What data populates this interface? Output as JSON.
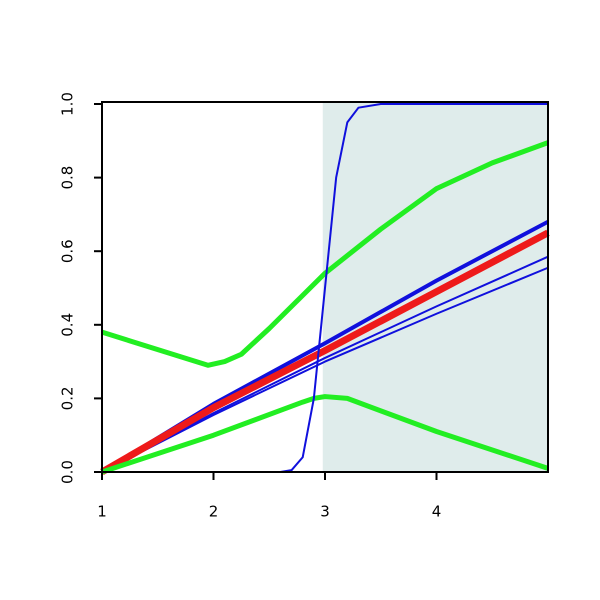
{
  "chart_data": {
    "type": "line",
    "xlim": [
      1,
      5
    ],
    "ylim": [
      0,
      1
    ],
    "xticks": [
      1,
      2,
      3,
      4
    ],
    "yticks": [
      {
        "value": 0,
        "label": "0.0"
      },
      {
        "value": 0.2,
        "label": "0.2"
      },
      {
        "value": 0.4,
        "label": "0.4"
      },
      {
        "value": 0.6,
        "label": "0.6"
      },
      {
        "value": 0.8,
        "label": "0.8"
      },
      {
        "value": 1,
        "label": "1.0"
      }
    ],
    "highlight": {
      "x": [
        2.98,
        5
      ],
      "color": "#dfeceb"
    },
    "series": [
      {
        "color": "#1010dd",
        "width": 2,
        "x": [
          1,
          2,
          3,
          4,
          5
        ],
        "values": [
          0,
          0.155,
          0.3,
          0.43,
          0.555
        ]
      },
      {
        "color": "#1010dd",
        "width": 2,
        "x": [
          1,
          2,
          3,
          4,
          5
        ],
        "values": [
          0,
          0.16,
          0.31,
          0.45,
          0.585
        ]
      },
      {
        "color": "#1010dd",
        "width": 4,
        "x": [
          1,
          2,
          3,
          4,
          5
        ],
        "values": [
          0,
          0.185,
          0.35,
          0.52,
          0.68
        ]
      },
      {
        "color": "#ee1a1a",
        "width": 7,
        "x": [
          1,
          2,
          3,
          4,
          5
        ],
        "values": [
          0,
          0.175,
          0.33,
          0.49,
          0.65
        ]
      },
      {
        "color": "#22ee22",
        "width": 5,
        "x": [
          1,
          1.95,
          2.1,
          2.25,
          2.5,
          3,
          3.5,
          4,
          4.5,
          5
        ],
        "values": [
          0.38,
          0.29,
          0.3,
          0.32,
          0.39,
          0.54,
          0.66,
          0.77,
          0.84,
          0.895
        ]
      },
      {
        "color": "#22ee22",
        "width": 5,
        "x": [
          1,
          2,
          2.8,
          2.9,
          3,
          3.2,
          4,
          5
        ],
        "values": [
          0,
          0.1,
          0.19,
          0.2,
          0.205,
          0.2,
          0.11,
          0.01
        ]
      },
      {
        "color": "#1010dd",
        "width": 2,
        "x": [
          1,
          2.6,
          2.7,
          2.8,
          2.9,
          3,
          3.1,
          3.2,
          3.3,
          3.5,
          5
        ],
        "values": [
          0,
          0,
          0.005,
          0.04,
          0.2,
          0.5,
          0.8,
          0.95,
          0.99,
          1,
          1
        ]
      }
    ]
  }
}
